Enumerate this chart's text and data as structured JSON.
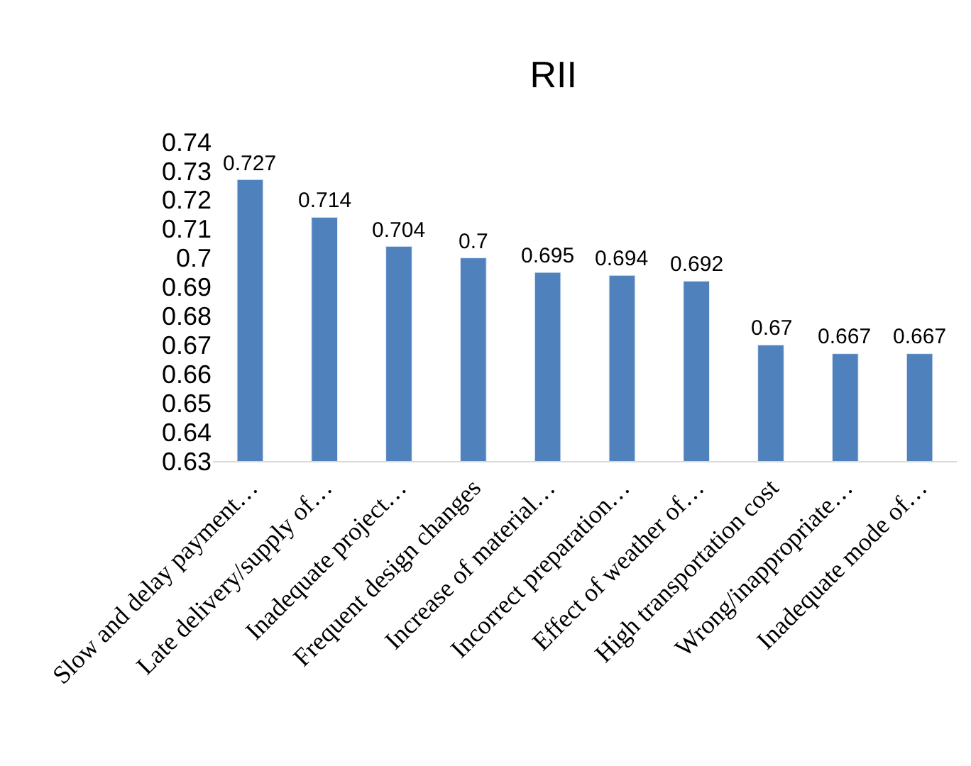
{
  "chart_data": {
    "type": "bar",
    "title": "RII",
    "categories": [
      "Slow and delay payment…",
      "Late delivery/supply of…",
      "Inadequate project…",
      "Frequent design changes",
      "Increase of material…",
      "Incorrect preparation…",
      "Effect of weather of…",
      "High transportation cost",
      "Wrong/inappropriate…",
      "Inadequate mode of…"
    ],
    "values": [
      0.727,
      0.714,
      0.704,
      0.7,
      0.695,
      0.694,
      0.692,
      0.67,
      0.667,
      0.667
    ],
    "color": "#4f81bd",
    "ylim": [
      0.63,
      0.74
    ],
    "yticks": [
      0.63,
      0.64,
      0.65,
      0.66,
      0.67,
      0.68,
      0.69,
      {
        "value": 0.7,
        "label": "0.7"
      },
      0.71,
      0.72,
      0.73,
      0.74
    ],
    "legend": false,
    "data_labels": true
  }
}
